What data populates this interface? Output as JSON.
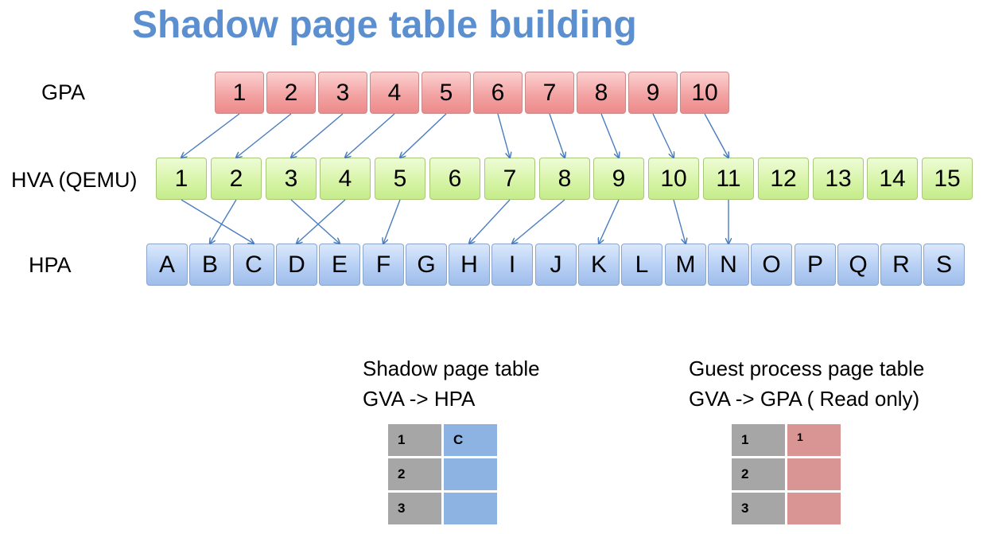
{
  "title": "Shadow page table building",
  "rows": {
    "gpa_label": "GPA",
    "hva_label": "HVA (QEMU)",
    "hpa_label": "HPA"
  },
  "gpa": [
    "1",
    "2",
    "3",
    "4",
    "5",
    "6",
    "7",
    "8",
    "9",
    "10"
  ],
  "hva": [
    "1",
    "2",
    "3",
    "4",
    "5",
    "6",
    "7",
    "8",
    "9",
    "10",
    "11",
    "12",
    "13",
    "14",
    "15"
  ],
  "hpa": [
    "A",
    "B",
    "C",
    "D",
    "E",
    "F",
    "G",
    "H",
    "I",
    "J",
    "K",
    "L",
    "M",
    "N",
    "O",
    "P",
    "Q",
    "R",
    "S"
  ],
  "mappings": {
    "gpa_to_hva": [
      [
        1,
        1
      ],
      [
        2,
        2
      ],
      [
        3,
        3
      ],
      [
        4,
        4
      ],
      [
        5,
        5
      ],
      [
        6,
        7
      ],
      [
        7,
        8
      ],
      [
        8,
        9
      ],
      [
        9,
        10
      ],
      [
        10,
        11
      ]
    ],
    "hva_to_hpa": [
      [
        1,
        3
      ],
      [
        2,
        2
      ],
      [
        3,
        5
      ],
      [
        4,
        4
      ],
      [
        5,
        6
      ],
      [
        7,
        8
      ],
      [
        8,
        9
      ],
      [
        9,
        11
      ],
      [
        10,
        13
      ],
      [
        11,
        14
      ]
    ]
  },
  "shadow_table": {
    "title_line1": "Shadow page table",
    "title_line2": "GVA -> HPA",
    "rows": [
      {
        "key": "1",
        "value": "C"
      },
      {
        "key": "2",
        "value": ""
      },
      {
        "key": "3",
        "value": ""
      }
    ]
  },
  "guest_table": {
    "title_line1": "Guest process page table",
    "title_line2": "GVA -> GPA ( Read only)",
    "rows": [
      {
        "key": "1",
        "value": "1"
      },
      {
        "key": "2",
        "value": ""
      },
      {
        "key": "3",
        "value": ""
      }
    ]
  },
  "colors": {
    "title": "#5b8fd0",
    "gpa": "#f3a3a3",
    "hva": "#d7f4a8",
    "hpa": "#b6cff4",
    "arrow": "#4a7cbf",
    "shadow_value": "#8db3e2",
    "guest_value": "#d99594",
    "table_key": "#a6a6a6"
  }
}
